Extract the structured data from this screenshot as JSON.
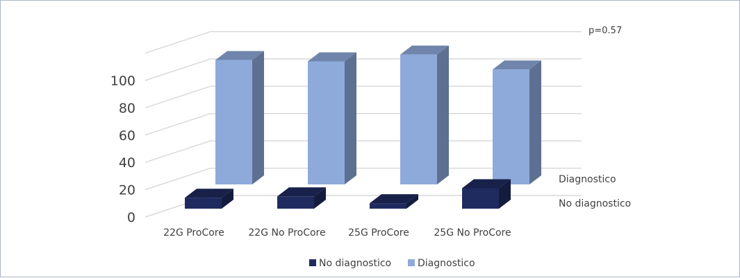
{
  "chart_data": {
    "type": "bar",
    "style": "3d-clustered-depth",
    "categories": [
      "22G ProCore",
      "22G No ProCore",
      "25G ProCore",
      "25G No ProCore"
    ],
    "series": [
      {
        "name": "No diagnostico",
        "values": [
          8,
          9,
          4,
          15
        ],
        "color": "#1f2a5e"
      },
      {
        "name": "Diagnostico",
        "values": [
          92,
          91,
          96,
          85
        ],
        "color": "#8eaadb"
      }
    ],
    "y_ticks": [
      "0",
      "20",
      "40",
      "60",
      "80",
      "100"
    ],
    "ylim": [
      0,
      100
    ],
    "annotation": "p=0.57",
    "grid": true,
    "legend_position": "bottom"
  }
}
